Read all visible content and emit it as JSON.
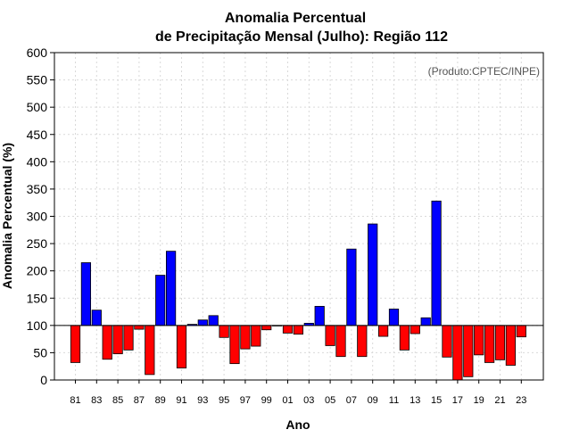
{
  "chart_data": {
    "type": "bar",
    "title": [
      "Anomalia Percentual",
      "de Precipitação Mensal (Julho): Região 112"
    ],
    "xlabel": "Ano",
    "ylabel": "Anomalia Percentual (%)",
    "credit": "(Produto:CPTEC/INPE)",
    "baseline": 100,
    "ylim": [
      0,
      600
    ],
    "yticks": [
      0,
      50,
      100,
      150,
      200,
      250,
      300,
      350,
      400,
      450,
      500,
      550,
      600
    ],
    "xticks": [
      "81",
      "83",
      "85",
      "87",
      "89",
      "91",
      "93",
      "95",
      "97",
      "99",
      "01",
      "03",
      "05",
      "07",
      "09",
      "11",
      "13",
      "15",
      "17",
      "19",
      "21",
      "23"
    ],
    "grid": true,
    "categories": [
      "81",
      "82",
      "83",
      "84",
      "85",
      "86",
      "87",
      "88",
      "89",
      "90",
      "91",
      "92",
      "93",
      "94",
      "95",
      "96",
      "97",
      "98",
      "99",
      "00",
      "01",
      "02",
      "03",
      "04",
      "05",
      "06",
      "07",
      "08",
      "09",
      "10",
      "11",
      "12",
      "13",
      "14",
      "15",
      "16",
      "17",
      "18",
      "19",
      "20",
      "21",
      "22",
      "23"
    ],
    "values": [
      32,
      215,
      128,
      38,
      48,
      55,
      93,
      10,
      192,
      236,
      22,
      102,
      110,
      118,
      78,
      30,
      57,
      62,
      92,
      100,
      86,
      84,
      104,
      135,
      63,
      43,
      240,
      43,
      286,
      80,
      130,
      55,
      85,
      114,
      328,
      42,
      0,
      6,
      46,
      32,
      37,
      27,
      79
    ],
    "colors": {
      "above": "#0000ff",
      "below": "#ff0000",
      "outline": "#000000",
      "grid": "#d9d9d9"
    }
  }
}
